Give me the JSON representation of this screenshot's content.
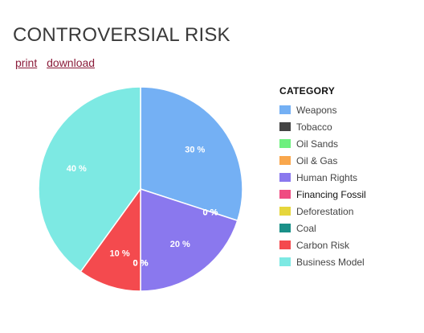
{
  "page": {
    "title": "CONTROVERSIAL RISK",
    "links": {
      "print": "print",
      "download": "download"
    }
  },
  "legend": {
    "title": "CATEGORY"
  },
  "chart_data": {
    "type": "pie",
    "title": "",
    "categories": [
      "Weapons",
      "Tobacco",
      "Oil Sands",
      "Oil & Gas",
      "Human Rights",
      "Financing Fossil",
      "Deforestation",
      "Coal",
      "Carbon Risk",
      "Business Model"
    ],
    "values": [
      30,
      0,
      0,
      0,
      20,
      0,
      0,
      0,
      10,
      40
    ],
    "labels": [
      "30 %",
      "0 %",
      "0 %",
      "0 %",
      "20 %",
      "0 %",
      "0 %",
      "0 %",
      "10 %",
      "40 %"
    ],
    "colors": [
      "#74b0f4",
      "#444444",
      "#6ef07f",
      "#f9a74d",
      "#8a78ee",
      "#ef4c82",
      "#e6d63c",
      "#1a9088",
      "#f44a4e",
      "#7de9e3"
    ],
    "legend_position": "right"
  }
}
